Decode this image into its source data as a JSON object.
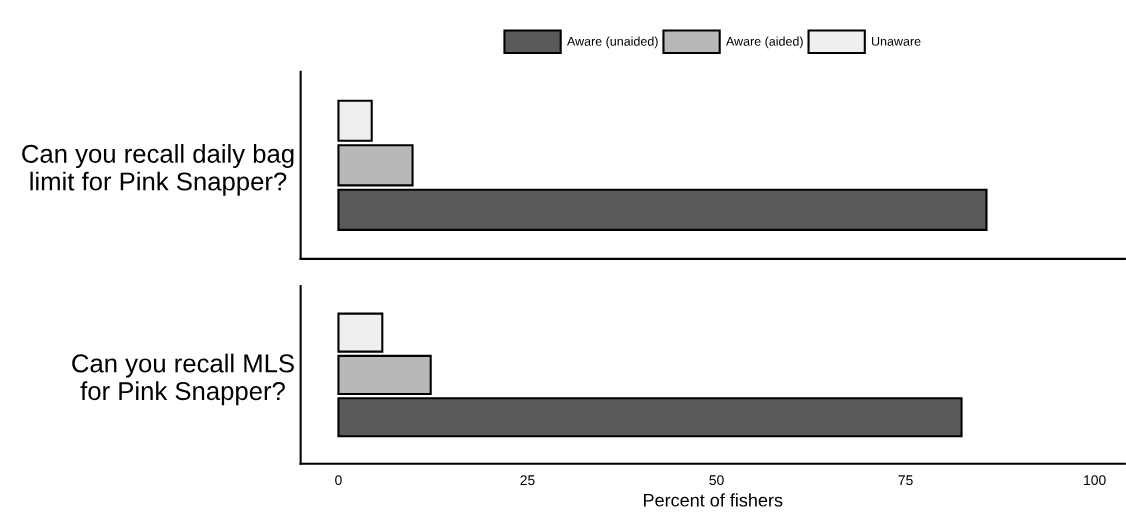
{
  "chart_data": [
    {
      "type": "bar",
      "orientation": "horizontal",
      "categories": [
        "Can you recall daily bag\nlimit for Pink Snapper?"
      ],
      "series": [
        {
          "name": "Unaware",
          "color": "#efefef",
          "values": [
            4.4
          ]
        },
        {
          "name": "Aware (aided)",
          "color": "#b8b8b8",
          "values": [
            9.8
          ]
        },
        {
          "name": "Aware (unaided)",
          "color": "#5a5a5a",
          "values": [
            85.7
          ]
        }
      ],
      "xlim": [
        -5,
        104
      ],
      "xticks": [
        0,
        25,
        50,
        75,
        100
      ],
      "tick_labels": "y",
      "legend": "top",
      "grid": false
    },
    {
      "type": "bar",
      "orientation": "horizontal",
      "categories": [
        "Can you recall MLS\nfor Pink Snapper?"
      ],
      "series": [
        {
          "color": "#efefef",
          "values": [
            5.8
          ]
        },
        {
          "color": "#b8b8b8",
          "values": [
            12.2
          ]
        },
        {
          "color": "#5a5a5a",
          "values": [
            82.4
          ]
        }
      ],
      "xlim": [
        -5,
        104
      ],
      "xticks": [
        0,
        25,
        50,
        75,
        100
      ],
      "xlabel": "Percent of fishers",
      "grid": false
    }
  ]
}
